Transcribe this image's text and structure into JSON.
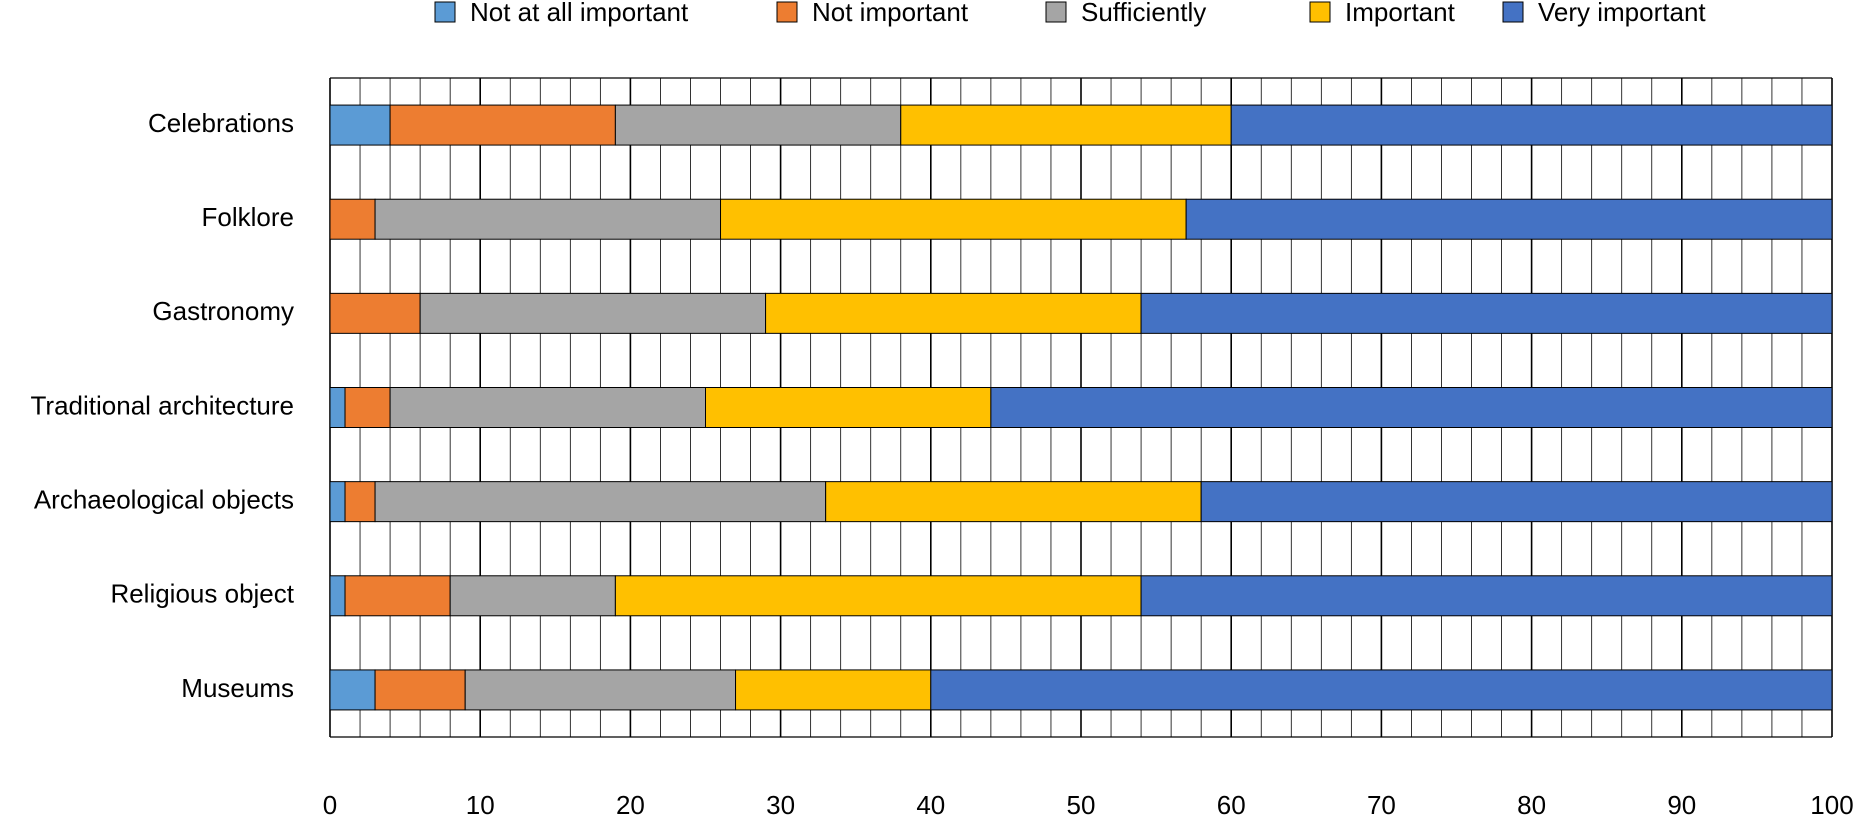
{
  "chart_data": {
    "type": "bar",
    "orientation": "horizontal",
    "stacked": true,
    "categories": [
      "Celebrations",
      "Folklore",
      "Gastronomy",
      "Traditional architecture",
      "Archaeological objects",
      "Religious object",
      "Museums"
    ],
    "series": [
      {
        "name": "Not at all important",
        "color": "#5B9BD5",
        "values": [
          4,
          0,
          0,
          1,
          1,
          1,
          3
        ]
      },
      {
        "name": "Not important",
        "color": "#ED7D31",
        "values": [
          15,
          3,
          6,
          3,
          2,
          7,
          6
        ]
      },
      {
        "name": "Sufficiently",
        "color": "#A5A5A5",
        "values": [
          19,
          23,
          23,
          21,
          30,
          11,
          18
        ]
      },
      {
        "name": "Important",
        "color": "#FFC000",
        "values": [
          22,
          31,
          25,
          19,
          25,
          35,
          13
        ]
      },
      {
        "name": "Very important",
        "color": "#4472C4",
        "values": [
          40,
          43,
          46,
          56,
          42,
          46,
          60
        ]
      }
    ],
    "xlim": [
      0,
      100
    ],
    "x_ticks": [
      "0",
      "10",
      "20",
      "30",
      "40",
      "50",
      "60",
      "70",
      "80",
      "90",
      "100"
    ],
    "grid": true,
    "legend_position": "top"
  }
}
